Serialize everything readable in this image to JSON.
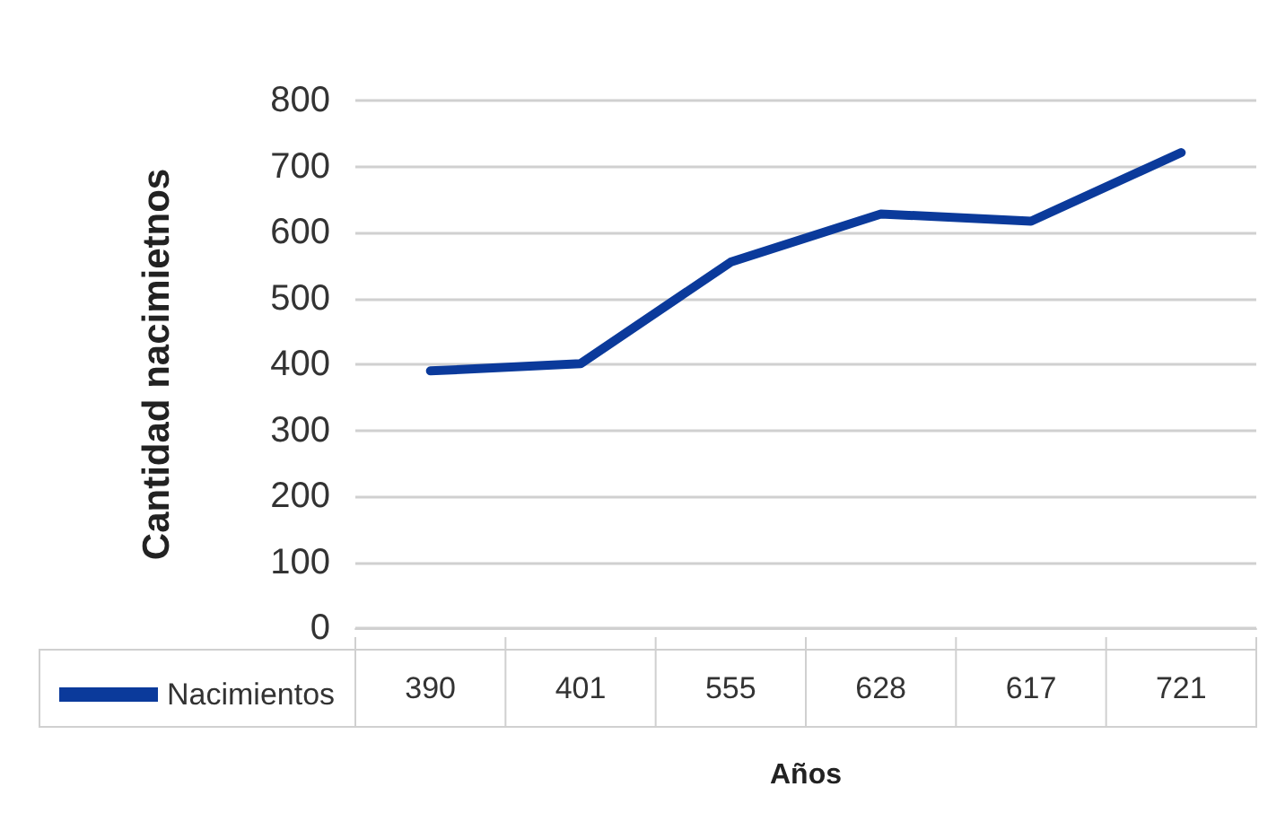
{
  "chart_data": {
    "type": "line",
    "xlabel": "Años",
    "ylabel": "Cantidad nacimietnos",
    "categories": [
      null,
      null,
      null,
      null,
      null,
      null
    ],
    "series": [
      {
        "name": "Nacimientos",
        "color": "#0b3a9b",
        "values": [
          390,
          401,
          555,
          628,
          617,
          721
        ]
      }
    ],
    "ylim": [
      0,
      800
    ],
    "yticks": [
      0,
      100,
      200,
      300,
      400,
      500,
      600,
      700,
      800
    ],
    "grid": "y",
    "legend": "bottom left",
    "marker": "none",
    "line_style": "solid",
    "data_labels": true
  }
}
